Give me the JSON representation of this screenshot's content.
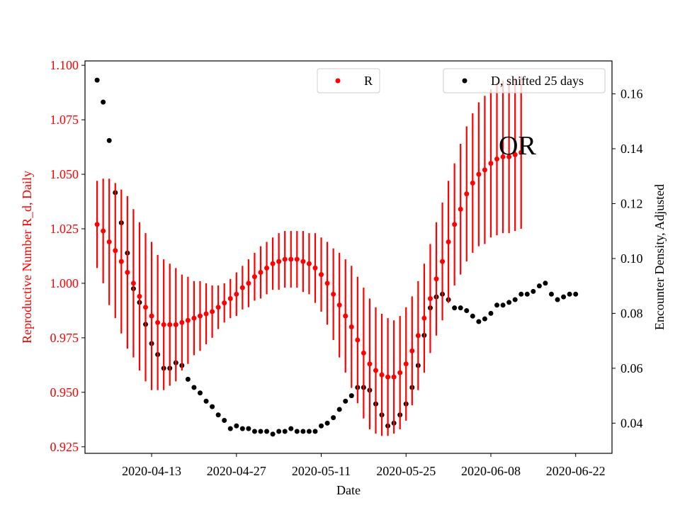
{
  "chart_data": {
    "type": "scatter",
    "annotation": "OR",
    "xlabel": "Date",
    "ylabel_left": "Reproductive Number R_d, Daily",
    "ylabel_right": "Encounter Density, Adjusted",
    "x_ticks": [
      "2020-04-13",
      "2020-04-27",
      "2020-05-11",
      "2020-05-25",
      "2020-06-08",
      "2020-06-22"
    ],
    "y_left_ticks": [
      "0.925",
      "0.950",
      "0.975",
      "1.000",
      "1.025",
      "1.050",
      "1.075",
      "1.100"
    ],
    "y_right_ticks": [
      "0.04",
      "0.06",
      "0.08",
      "0.10",
      "0.12",
      "0.14",
      "0.16"
    ],
    "xlim": [
      "2020-04-02",
      "2020-06-28"
    ],
    "ylim_left": [
      0.922,
      1.102
    ],
    "ylim_right": [
      0.029,
      0.172
    ],
    "grid": false,
    "legend_r_position": "top-center",
    "legend_d_position": "top-right",
    "colors": {
      "R": "#ff0000",
      "D": "#000000",
      "left_axis": "#ff0000",
      "right_axis": "#000000"
    },
    "series": [
      {
        "name": "R",
        "axis": "left",
        "start_date": "2020-04-04",
        "values": [
          1.027,
          1.024,
          1.019,
          1.015,
          1.01,
          1.005,
          1.0,
          0.994,
          0.989,
          0.985,
          0.982,
          0.981,
          0.981,
          0.981,
          0.982,
          0.983,
          0.984,
          0.985,
          0.986,
          0.987,
          0.989,
          0.991,
          0.993,
          0.995,
          0.998,
          1.0,
          1.003,
          1.005,
          1.007,
          1.009,
          1.01,
          1.011,
          1.011,
          1.011,
          1.01,
          1.009,
          1.007,
          1.004,
          1.0,
          0.995,
          0.99,
          0.985,
          0.98,
          0.974,
          0.968,
          0.963,
          0.96,
          0.958,
          0.957,
          0.957,
          0.959,
          0.963,
          0.969,
          0.976,
          0.984,
          0.993,
          1.002,
          1.01,
          1.019,
          1.027,
          1.034,
          1.041,
          1.046,
          1.05,
          1.052,
          1.055,
          1.057,
          1.058,
          1.058,
          1.059,
          1.06
        ],
        "errors": [
          0.02,
          0.024,
          0.029,
          0.031,
          0.033,
          0.035,
          0.034,
          0.034,
          0.034,
          0.034,
          0.031,
          0.03,
          0.028,
          0.026,
          0.022,
          0.02,
          0.017,
          0.016,
          0.014,
          0.012,
          0.01,
          0.009,
          0.009,
          0.01,
          0.01,
          0.011,
          0.011,
          0.012,
          0.012,
          0.012,
          0.013,
          0.013,
          0.013,
          0.013,
          0.014,
          0.014,
          0.016,
          0.017,
          0.019,
          0.021,
          0.024,
          0.026,
          0.028,
          0.029,
          0.03,
          0.03,
          0.029,
          0.028,
          0.027,
          0.026,
          0.026,
          0.026,
          0.025,
          0.025,
          0.025,
          0.025,
          0.026,
          0.027,
          0.028,
          0.028,
          0.03,
          0.031,
          0.032,
          0.033,
          0.034,
          0.034,
          0.035,
          0.035,
          0.035,
          0.035,
          0.035
        ]
      },
      {
        "name": "D, shifted 25 days",
        "axis": "right",
        "start_date": "2020-04-04",
        "values": [
          0.165,
          0.157,
          0.143,
          0.124,
          0.113,
          0.102,
          0.089,
          0.084,
          0.076,
          0.069,
          0.065,
          0.06,
          0.06,
          0.062,
          0.061,
          0.056,
          0.053,
          0.051,
          0.048,
          0.046,
          0.043,
          0.041,
          0.038,
          0.039,
          0.038,
          0.038,
          0.037,
          0.037,
          0.037,
          0.036,
          0.037,
          0.037,
          0.038,
          0.037,
          0.037,
          0.037,
          0.037,
          0.039,
          0.04,
          0.042,
          0.045,
          0.048,
          0.05,
          0.053,
          0.053,
          0.052,
          0.047,
          0.043,
          0.039,
          0.04,
          0.043,
          0.047,
          0.053,
          0.061,
          0.072,
          0.082,
          0.086,
          0.087,
          0.085,
          0.082,
          0.082,
          0.081,
          0.079,
          0.077,
          0.078,
          0.08,
          0.083,
          0.083,
          0.084,
          0.085,
          0.087,
          0.087,
          0.088,
          0.09,
          0.091,
          0.087,
          0.085,
          0.086,
          0.087,
          0.087
        ]
      }
    ]
  },
  "legend": {
    "r_label": "R",
    "d_label": "D, shifted 25 days"
  }
}
